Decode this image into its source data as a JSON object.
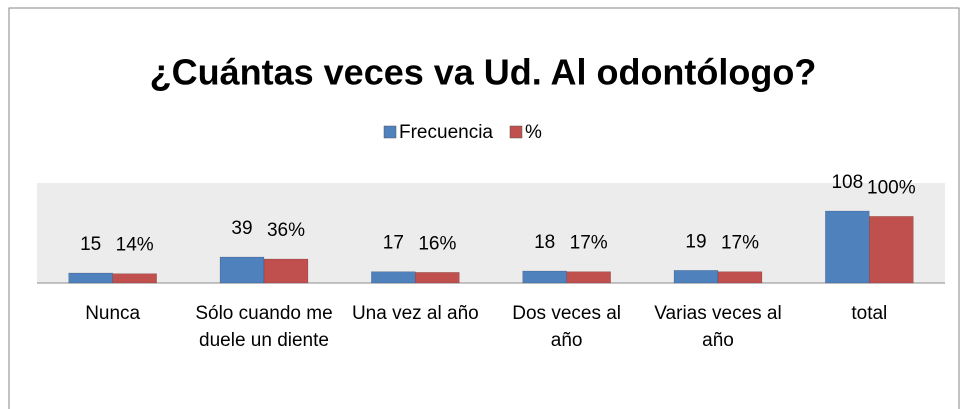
{
  "chart_data": {
    "type": "bar",
    "title": "¿Cuántas veces va Ud. Al odontólogo?",
    "categories": [
      "Nunca",
      "Sólo cuando me duele un diente",
      "Una vez al año",
      "Dos veces al año",
      "Varias veces al año",
      "total"
    ],
    "series": [
      {
        "name": "Frecuencia",
        "color": "#4f81bd",
        "values": [
          15,
          39,
          17,
          18,
          19,
          108
        ]
      },
      {
        "name": "%",
        "color": "#c0504d",
        "values": [
          14,
          36,
          16,
          17,
          17,
          100
        ],
        "value_labels": [
          "14%",
          "36%",
          "16%",
          "17%",
          "17%",
          "100%"
        ]
      }
    ],
    "ylim": [
      0,
      150
    ],
    "legend": "top"
  }
}
